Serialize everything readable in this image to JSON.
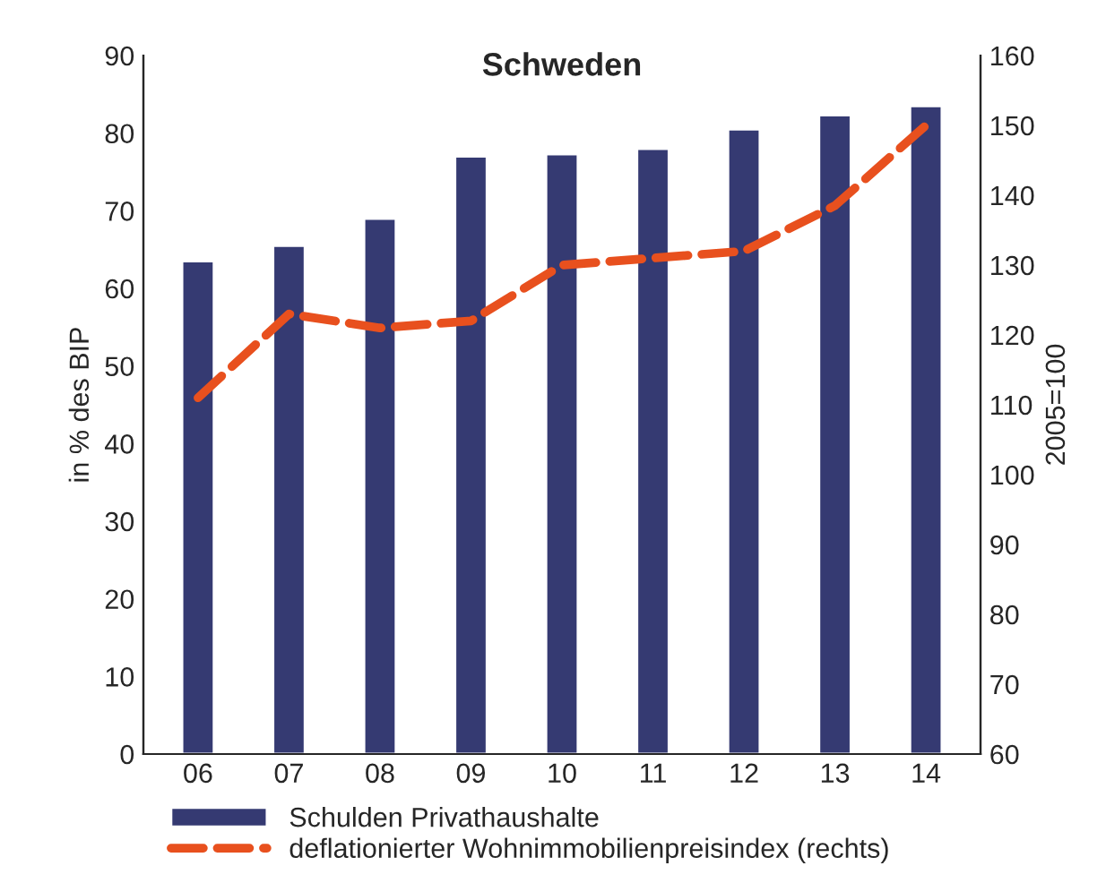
{
  "chart_data": {
    "type": "bar",
    "title": "Schweden",
    "ylabel": "in % des BIP",
    "y2label": "2005=100",
    "categories": [
      "06",
      "07",
      "08",
      "09",
      "10",
      "11",
      "12",
      "13",
      "14"
    ],
    "series": [
      {
        "name": "Schulden Privathaushalte",
        "color": "#353a72",
        "values": [
          63.5,
          65.5,
          69,
          77,
          77.3,
          78,
          80.5,
          82.3,
          83.5
        ]
      },
      {
        "name": "deflationierter Wohnimmobilienpreisindex (rechts)",
        "type": "line",
        "axis": "y2",
        "color": "#e8501e",
        "line_style": "dashed",
        "values": [
          111,
          123,
          121,
          122,
          130,
          131,
          132,
          138.5,
          150
        ]
      }
    ],
    "ylim": [
      0,
      90
    ],
    "yticks": [
      0,
      10,
      20,
      30,
      40,
      50,
      60,
      70,
      80,
      90
    ],
    "y2lim": [
      60,
      160
    ],
    "y2ticks": [
      60,
      70,
      80,
      90,
      100,
      110,
      120,
      130,
      140,
      150,
      160
    ],
    "grid": false,
    "legend": "bottom"
  }
}
